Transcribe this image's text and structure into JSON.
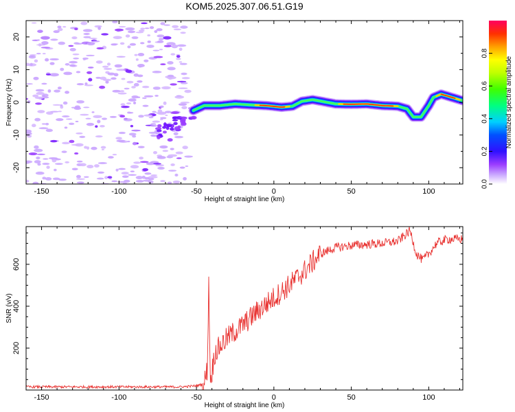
{
  "chart_data": [
    {
      "type": "heatmap",
      "title": "KOM5.2025.307.06.51.G19",
      "xlabel": "Height of straight line (km)",
      "ylabel": "Frequency (Hz)",
      "xlim": [
        -160,
        122
      ],
      "ylim": [
        -25,
        25
      ],
      "xticks": [
        -150,
        -100,
        -50,
        0,
        50,
        100
      ],
      "yticks": [
        -20,
        -10,
        0,
        10,
        20
      ],
      "colorbar": {
        "label": "Normalized spectral amplitude",
        "range": [
          0,
          1
        ],
        "ticks": [
          "0.0",
          "0.2",
          "0.4",
          "0.6",
          "0.8"
        ]
      },
      "ridge": [
        [
          -52,
          -2.5
        ],
        [
          -45,
          -1
        ],
        [
          -35,
          -1
        ],
        [
          -25,
          -0.5
        ],
        [
          -15,
          -0.8
        ],
        [
          -5,
          -1
        ],
        [
          5,
          -1.5
        ],
        [
          12,
          -1.2
        ],
        [
          18,
          0.3
        ],
        [
          25,
          0.8
        ],
        [
          32,
          0.2
        ],
        [
          40,
          -0.5
        ],
        [
          50,
          -0.6
        ],
        [
          60,
          -0.5
        ],
        [
          70,
          -1
        ],
        [
          80,
          -1.2
        ],
        [
          86,
          -2
        ],
        [
          90,
          -4.5
        ],
        [
          95,
          -4.5
        ],
        [
          100,
          -1
        ],
        [
          103,
          1.5
        ],
        [
          108,
          2.5
        ],
        [
          115,
          1.5
        ],
        [
          122,
          0.5
        ]
      ],
      "scattered_noise_region": [
        -160,
        -55
      ]
    },
    {
      "type": "line",
      "xlabel": "Height of straight line (km)",
      "ylabel": "SNR (v/v)",
      "xlim": [
        -160,
        122
      ],
      "ylim": [
        0,
        780
      ],
      "xticks": [
        -150,
        -100,
        -50,
        0,
        50,
        100
      ],
      "yticks": [
        200,
        400,
        600
      ],
      "color": "#e8302e",
      "keypoints": [
        [
          -160,
          15
        ],
        [
          -60,
          15
        ],
        [
          -50,
          20
        ],
        [
          -45,
          30
        ],
        [
          -43,
          100
        ],
        [
          -42,
          520
        ],
        [
          -41,
          40
        ],
        [
          -38,
          180
        ],
        [
          -30,
          250
        ],
        [
          -20,
          310
        ],
        [
          -10,
          380
        ],
        [
          0,
          440
        ],
        [
          10,
          500
        ],
        [
          20,
          570
        ],
        [
          30,
          650
        ],
        [
          40,
          680
        ],
        [
          50,
          690
        ],
        [
          60,
          695
        ],
        [
          70,
          700
        ],
        [
          80,
          710
        ],
        [
          88,
          760
        ],
        [
          92,
          650
        ],
        [
          96,
          620
        ],
        [
          100,
          650
        ],
        [
          105,
          700
        ],
        [
          112,
          720
        ],
        [
          122,
          720
        ]
      ]
    }
  ]
}
